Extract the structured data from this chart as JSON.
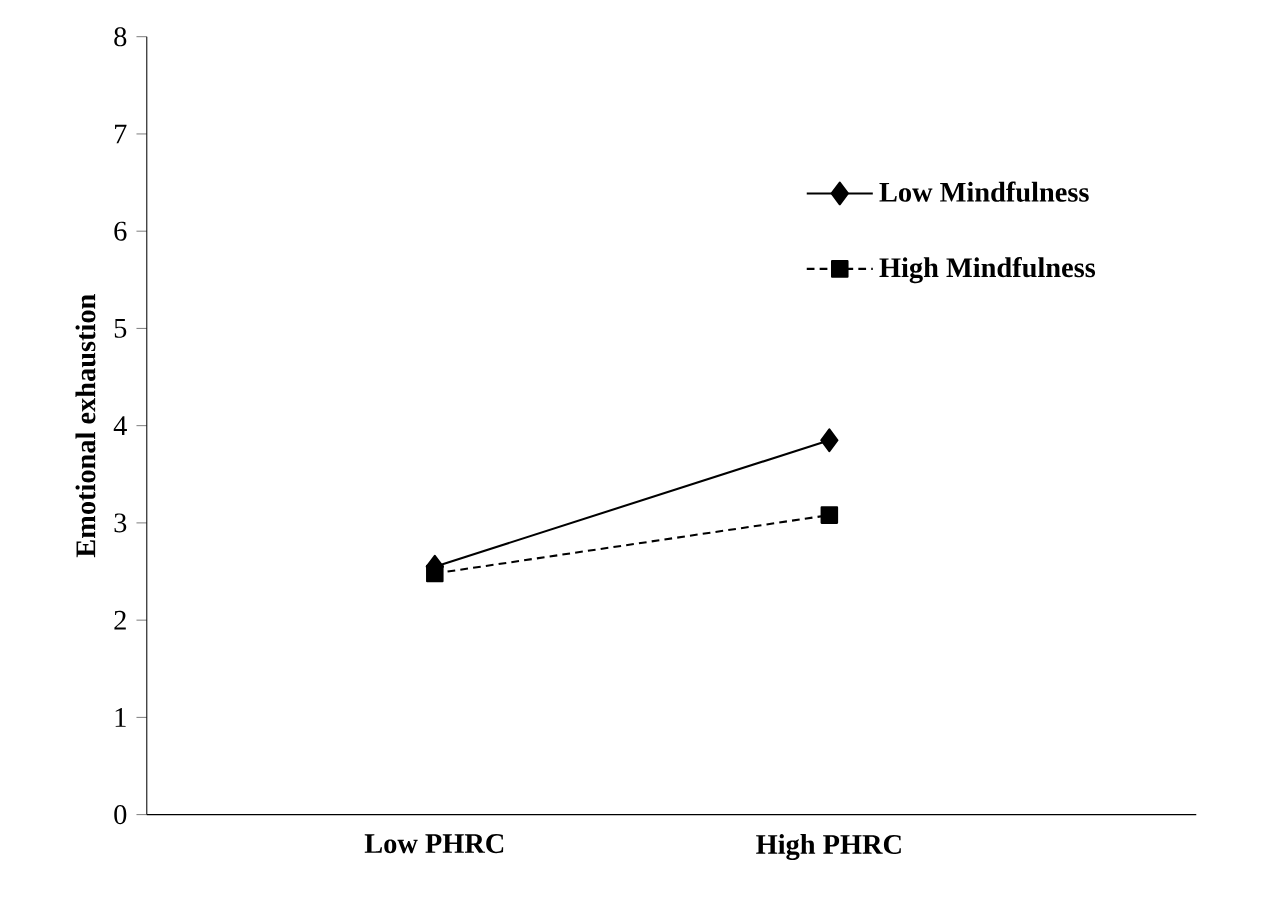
{
  "chart_data": {
    "type": "line",
    "ylabel": "Emotional exhaustion",
    "categories": [
      "Low PHRC",
      "High PHRC"
    ],
    "series": [
      {
        "name": "Low Mindfulness",
        "color": "#000000",
        "values": [
          2.55,
          3.85
        ],
        "marker": "diamond",
        "line_style": "solid"
      },
      {
        "name": "High Mindfulness",
        "color": "#000000",
        "values": [
          2.48,
          3.08
        ],
        "marker": "square",
        "line_style": "dashed"
      }
    ],
    "ylim": [
      0,
      8
    ],
    "yticks": [
      0,
      1,
      2,
      3,
      4,
      5,
      6,
      7,
      8
    ],
    "legend": "right",
    "grid": false
  }
}
